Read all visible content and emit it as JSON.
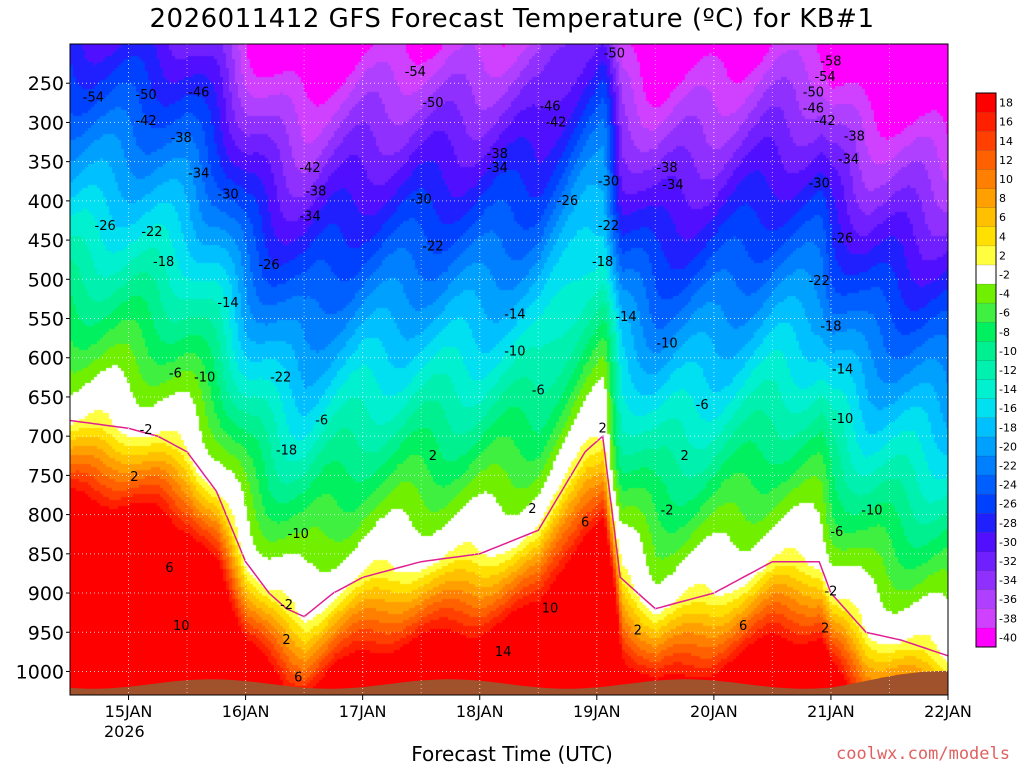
{
  "title": "2026011412 GFS Forecast Temperature (ºC) for KB#1",
  "xlabel": "Forecast Time (UTC)",
  "credit": "coolwx.com/models",
  "year_label": "2026",
  "chart_data": {
    "type": "heatmap",
    "title": "2026011412 GFS Forecast Temperature (ºC) for KB#1",
    "xlabel": "Forecast Time (UTC)",
    "ylabel": "",
    "x_ticks": [
      "15JAN",
      "16JAN",
      "17JAN",
      "18JAN",
      "19JAN",
      "20JAN",
      "21JAN",
      "22JAN"
    ],
    "y_ticks": [
      250,
      300,
      350,
      400,
      450,
      500,
      550,
      600,
      650,
      700,
      750,
      800,
      850,
      900,
      950,
      1000
    ],
    "ylim": [
      1030,
      200
    ],
    "xlim_days": [
      14.5,
      22.0
    ],
    "colorbar": {
      "levels": [
        -40,
        -38,
        -36,
        -34,
        -32,
        -30,
        -28,
        -26,
        -24,
        -22,
        -20,
        -18,
        -16,
        -14,
        -12,
        -10,
        -8,
        -6,
        -4,
        -2,
        2,
        4,
        6,
        8,
        10,
        12,
        14,
        16,
        18
      ],
      "labels": [
        "18",
        "16",
        "14",
        "12",
        "10",
        "8",
        "6",
        "4",
        "2",
        "-2",
        "-4",
        "-6",
        "-8",
        "-10",
        "-12",
        "-14",
        "-16",
        "-18",
        "-20",
        "-22",
        "-24",
        "-26",
        "-28",
        "-30",
        "-32",
        "-34",
        "-36",
        "-38",
        "-40"
      ],
      "colors": [
        "#ff00ff",
        "#d040ff",
        "#b040ff",
        "#9030ff",
        "#7020ff",
        "#5010ff",
        "#2020ff",
        "#0040ff",
        "#0060ff",
        "#0080ff",
        "#00a0ff",
        "#00c0ff",
        "#00e0f0",
        "#00f0d0",
        "#00f0b0",
        "#00f090",
        "#00f060",
        "#40f040",
        "#70f000",
        "#ffffff",
        "#ffff40",
        "#ffe000",
        "#ffc000",
        "#ffa000",
        "#ff8000",
        "#ff6000",
        "#ff4000",
        "#ff2000",
        "#ff0000"
      ]
    },
    "ground_color": "#a0522d",
    "profile_days": [
      14.5,
      15.0,
      15.25,
      15.5,
      15.75,
      16.0,
      16.2,
      16.35,
      16.5,
      16.75,
      17.0,
      17.5,
      18.0,
      18.5,
      18.9,
      19.05,
      19.2,
      19.5,
      20.0,
      20.5,
      20.9,
      21.0,
      21.3,
      21.6,
      22.0
    ],
    "freezing_level_hpa": [
      680,
      690,
      700,
      720,
      770,
      860,
      900,
      920,
      930,
      900,
      880,
      860,
      850,
      820,
      720,
      700,
      880,
      920,
      900,
      860,
      860,
      900,
      950,
      960,
      980
    ],
    "contour_labels": [
      {
        "text": "-54",
        "day": 14.7,
        "p": 268
      },
      {
        "text": "-50",
        "day": 15.15,
        "p": 265
      },
      {
        "text": "-46",
        "day": 15.6,
        "p": 262
      },
      {
        "text": "-42",
        "day": 15.15,
        "p": 298
      },
      {
        "text": "-38",
        "day": 15.45,
        "p": 320
      },
      {
        "text": "-34",
        "day": 15.6,
        "p": 365
      },
      {
        "text": "-30",
        "day": 15.85,
        "p": 392
      },
      {
        "text": "-26",
        "day": 14.8,
        "p": 432
      },
      {
        "text": "-22",
        "day": 15.2,
        "p": 440
      },
      {
        "text": "-18",
        "day": 15.3,
        "p": 478
      },
      {
        "text": "-14",
        "day": 15.85,
        "p": 530
      },
      {
        "text": "-10",
        "day": 15.65,
        "p": 625
      },
      {
        "text": "-6",
        "day": 15.4,
        "p": 620
      },
      {
        "text": "-2",
        "day": 15.15,
        "p": 692
      },
      {
        "text": "2",
        "day": 15.05,
        "p": 752
      },
      {
        "text": "6",
        "day": 15.35,
        "p": 868
      },
      {
        "text": "10",
        "day": 15.45,
        "p": 942
      },
      {
        "text": "-26",
        "day": 16.2,
        "p": 482
      },
      {
        "text": "-22",
        "day": 16.3,
        "p": 625
      },
      {
        "text": "-18",
        "day": 16.35,
        "p": 718
      },
      {
        "text": "-10",
        "day": 16.45,
        "p": 825
      },
      {
        "text": "-2",
        "day": 16.35,
        "p": 915
      },
      {
        "text": "2",
        "day": 16.35,
        "p": 960
      },
      {
        "text": "6",
        "day": 16.45,
        "p": 1008
      },
      {
        "text": "-42",
        "day": 16.55,
        "p": 358
      },
      {
        "text": "-38",
        "day": 16.6,
        "p": 388
      },
      {
        "text": "-34",
        "day": 16.55,
        "p": 420
      },
      {
        "text": "-6",
        "day": 16.65,
        "p": 680
      },
      {
        "text": "-54",
        "day": 17.45,
        "p": 236
      },
      {
        "text": "-50",
        "day": 17.6,
        "p": 275
      },
      {
        "text": "-30",
        "day": 17.5,
        "p": 398
      },
      {
        "text": "-22",
        "day": 17.6,
        "p": 458
      },
      {
        "text": "-14",
        "day": 18.3,
        "p": 545
      },
      {
        "text": "2",
        "day": 17.6,
        "p": 725
      },
      {
        "text": "-38",
        "day": 18.15,
        "p": 340
      },
      {
        "text": "-34",
        "day": 18.15,
        "p": 358
      },
      {
        "text": "-10",
        "day": 18.3,
        "p": 592
      },
      {
        "text": "-46",
        "day": 18.6,
        "p": 280
      },
      {
        "text": "-42",
        "day": 18.65,
        "p": 300
      },
      {
        "text": "-26",
        "day": 18.75,
        "p": 400
      },
      {
        "text": "-6",
        "day": 18.5,
        "p": 642
      },
      {
        "text": "2",
        "day": 18.45,
        "p": 793
      },
      {
        "text": "10",
        "day": 18.6,
        "p": 920
      },
      {
        "text": "14",
        "day": 18.2,
        "p": 975
      },
      {
        "text": "-50",
        "day": 19.15,
        "p": 212
      },
      {
        "text": "-30",
        "day": 19.1,
        "p": 375
      },
      {
        "text": "-22",
        "day": 19.1,
        "p": 432
      },
      {
        "text": "-18",
        "day": 19.05,
        "p": 478
      },
      {
        "text": "-14",
        "day": 19.25,
        "p": 548
      },
      {
        "text": "2",
        "day": 19.05,
        "p": 690
      },
      {
        "text": "6",
        "day": 18.9,
        "p": 810
      },
      {
        "text": "2",
        "day": 19.35,
        "p": 948
      },
      {
        "text": "-10",
        "day": 19.6,
        "p": 582
      },
      {
        "text": "-6",
        "day": 19.9,
        "p": 660
      },
      {
        "text": "2",
        "day": 19.75,
        "p": 725
      },
      {
        "text": "-2",
        "day": 19.6,
        "p": 795
      },
      {
        "text": "-38",
        "day": 19.6,
        "p": 358
      },
      {
        "text": "-34",
        "day": 19.65,
        "p": 380
      },
      {
        "text": "6",
        "day": 20.25,
        "p": 942
      },
      {
        "text": "-58",
        "day": 21.0,
        "p": 222
      },
      {
        "text": "-54",
        "day": 20.95,
        "p": 242
      },
      {
        "text": "-50",
        "day": 20.85,
        "p": 262
      },
      {
        "text": "-46",
        "day": 20.85,
        "p": 282
      },
      {
        "text": "-42",
        "day": 20.95,
        "p": 298
      },
      {
        "text": "-38",
        "day": 21.2,
        "p": 318
      },
      {
        "text": "-34",
        "day": 21.15,
        "p": 347
      },
      {
        "text": "-30",
        "day": 20.9,
        "p": 378
      },
      {
        "text": "-26",
        "day": 21.1,
        "p": 448
      },
      {
        "text": "-22",
        "day": 20.9,
        "p": 502
      },
      {
        "text": "-18",
        "day": 21.0,
        "p": 560
      },
      {
        "text": "-14",
        "day": 21.1,
        "p": 615
      },
      {
        "text": "-10",
        "day": 21.1,
        "p": 678
      },
      {
        "text": "-10",
        "day": 21.35,
        "p": 795
      },
      {
        "text": "-6",
        "day": 21.05,
        "p": 822
      },
      {
        "text": "-2",
        "day": 21.0,
        "p": 898
      },
      {
        "text": "2",
        "day": 20.95,
        "p": 945
      }
    ]
  }
}
